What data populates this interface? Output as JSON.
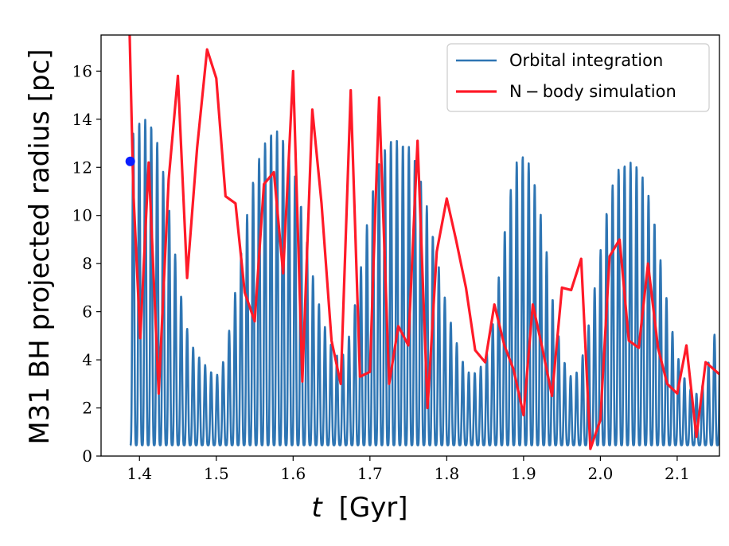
{
  "chart_data": {
    "type": "line",
    "xlabel_symbol": "t",
    "xlabel_unit": "[Gyr]",
    "ylabel": "M31 BH projected radius [pc]",
    "xlim": [
      1.35,
      2.155
    ],
    "ylim": [
      0,
      17.5
    ],
    "xticks": [
      1.4,
      1.5,
      1.6,
      1.7,
      1.8,
      1.9,
      2.0,
      2.1
    ],
    "xtick_labels": [
      "1.4",
      "1.5",
      "1.6",
      "1.7",
      "1.8",
      "1.9",
      "2.0",
      "2.1"
    ],
    "yticks": [
      0,
      2,
      4,
      6,
      8,
      10,
      12,
      14,
      16
    ],
    "ytick_labels": [
      "0",
      "2",
      "4",
      "6",
      "8",
      "10",
      "12",
      "14",
      "16"
    ],
    "grid": false,
    "legend_position": "top-right",
    "colors": {
      "orbital": "#2e75b3",
      "nbody": "#ff1a28",
      "marker": "#0a1eff"
    },
    "series": [
      {
        "name": "Orbital integration",
        "style": "oscillating",
        "x_start": 1.388,
        "x_end": 2.155,
        "period": 0.0078,
        "baseline_min": 0.45,
        "peak_envelope": [
          [
            1.388,
            13.2
          ],
          [
            1.4,
            13.9
          ],
          [
            1.41,
            14.0
          ],
          [
            1.42,
            13.5
          ],
          [
            1.43,
            12.0
          ],
          [
            1.44,
            10.0
          ],
          [
            1.45,
            7.5
          ],
          [
            1.46,
            5.5
          ],
          [
            1.47,
            4.5
          ],
          [
            1.48,
            4.0
          ],
          [
            1.49,
            3.6
          ],
          [
            1.5,
            3.3
          ],
          [
            1.51,
            4.0
          ],
          [
            1.52,
            5.8
          ],
          [
            1.53,
            8.0
          ],
          [
            1.54,
            10.0
          ],
          [
            1.55,
            11.8
          ],
          [
            1.56,
            12.8
          ],
          [
            1.57,
            13.4
          ],
          [
            1.58,
            13.5
          ],
          [
            1.59,
            13.0
          ],
          [
            1.6,
            12.0
          ],
          [
            1.61,
            10.5
          ],
          [
            1.62,
            8.5
          ],
          [
            1.63,
            6.8
          ],
          [
            1.64,
            5.5
          ],
          [
            1.65,
            4.6
          ],
          [
            1.66,
            4.0
          ],
          [
            1.67,
            4.5
          ],
          [
            1.68,
            6.2
          ],
          [
            1.69,
            8.2
          ],
          [
            1.7,
            10.5
          ],
          [
            1.71,
            12.0
          ],
          [
            1.72,
            12.8
          ],
          [
            1.73,
            13.2
          ],
          [
            1.74,
            13.0
          ],
          [
            1.75,
            12.9
          ],
          [
            1.76,
            12.2
          ],
          [
            1.77,
            11.0
          ],
          [
            1.78,
            9.5
          ],
          [
            1.79,
            7.8
          ],
          [
            1.8,
            6.2
          ],
          [
            1.81,
            5.0
          ],
          [
            1.82,
            4.0
          ],
          [
            1.83,
            3.4
          ],
          [
            1.84,
            3.5
          ],
          [
            1.85,
            4.0
          ],
          [
            1.86,
            5.5
          ],
          [
            1.87,
            8.0
          ],
          [
            1.88,
            10.5
          ],
          [
            1.89,
            12.2
          ],
          [
            1.9,
            12.5
          ],
          [
            1.91,
            12.0
          ],
          [
            1.92,
            10.5
          ],
          [
            1.93,
            8.5
          ],
          [
            1.94,
            6.0
          ],
          [
            1.95,
            4.2
          ],
          [
            1.96,
            3.3
          ],
          [
            1.97,
            3.5
          ],
          [
            1.98,
            4.5
          ],
          [
            1.99,
            6.5
          ],
          [
            2.0,
            8.5
          ],
          [
            2.01,
            10.5
          ],
          [
            2.02,
            11.8
          ],
          [
            2.03,
            12.1
          ],
          [
            2.04,
            12.2
          ],
          [
            2.05,
            12.0
          ],
          [
            2.06,
            11.2
          ],
          [
            2.07,
            9.8
          ],
          [
            2.08,
            7.8
          ],
          [
            2.09,
            5.8
          ],
          [
            2.1,
            4.2
          ],
          [
            2.11,
            3.2
          ],
          [
            2.12,
            2.6
          ],
          [
            2.13,
            2.6
          ],
          [
            2.14,
            3.8
          ],
          [
            2.155,
            6.0
          ]
        ]
      },
      {
        "name": "N − body simulation",
        "style": "line",
        "x": [
          1.387,
          1.392,
          1.401,
          1.412,
          1.425,
          1.438,
          1.45,
          1.462,
          1.475,
          1.488,
          1.5,
          1.512,
          1.525,
          1.537,
          1.55,
          1.562,
          1.575,
          1.587,
          1.6,
          1.612,
          1.625,
          1.637,
          1.65,
          1.662,
          1.675,
          1.687,
          1.7,
          1.712,
          1.725,
          1.737,
          1.75,
          1.762,
          1.775,
          1.787,
          1.8,
          1.812,
          1.825,
          1.837,
          1.85,
          1.862,
          1.875,
          1.887,
          1.9,
          1.912,
          1.925,
          1.937,
          1.95,
          1.962,
          1.975,
          1.987,
          2.0,
          2.012,
          2.025,
          2.037,
          2.05,
          2.062,
          2.075,
          2.087,
          2.1,
          2.112,
          2.125,
          2.137,
          2.155
        ],
        "values": [
          17.8,
          11.0,
          4.9,
          12.2,
          2.6,
          11.5,
          15.8,
          7.4,
          12.8,
          16.9,
          15.7,
          10.8,
          10.5,
          6.8,
          5.6,
          11.3,
          11.8,
          7.6,
          16.0,
          3.1,
          14.4,
          10.5,
          4.8,
          3.0,
          15.2,
          3.3,
          3.5,
          14.9,
          3.0,
          5.4,
          4.6,
          13.1,
          2.0,
          8.5,
          10.7,
          9.0,
          7.0,
          4.4,
          3.9,
          6.3,
          4.6,
          3.6,
          1.7,
          6.3,
          4.4,
          2.5,
          7.0,
          6.9,
          8.2,
          0.3,
          1.5,
          8.3,
          9.0,
          4.8,
          4.5,
          8.0,
          4.5,
          3.0,
          2.6,
          4.6,
          0.8,
          3.9,
          3.4
        ]
      }
    ],
    "marker": {
      "x": 1.388,
      "y": 12.25
    }
  }
}
